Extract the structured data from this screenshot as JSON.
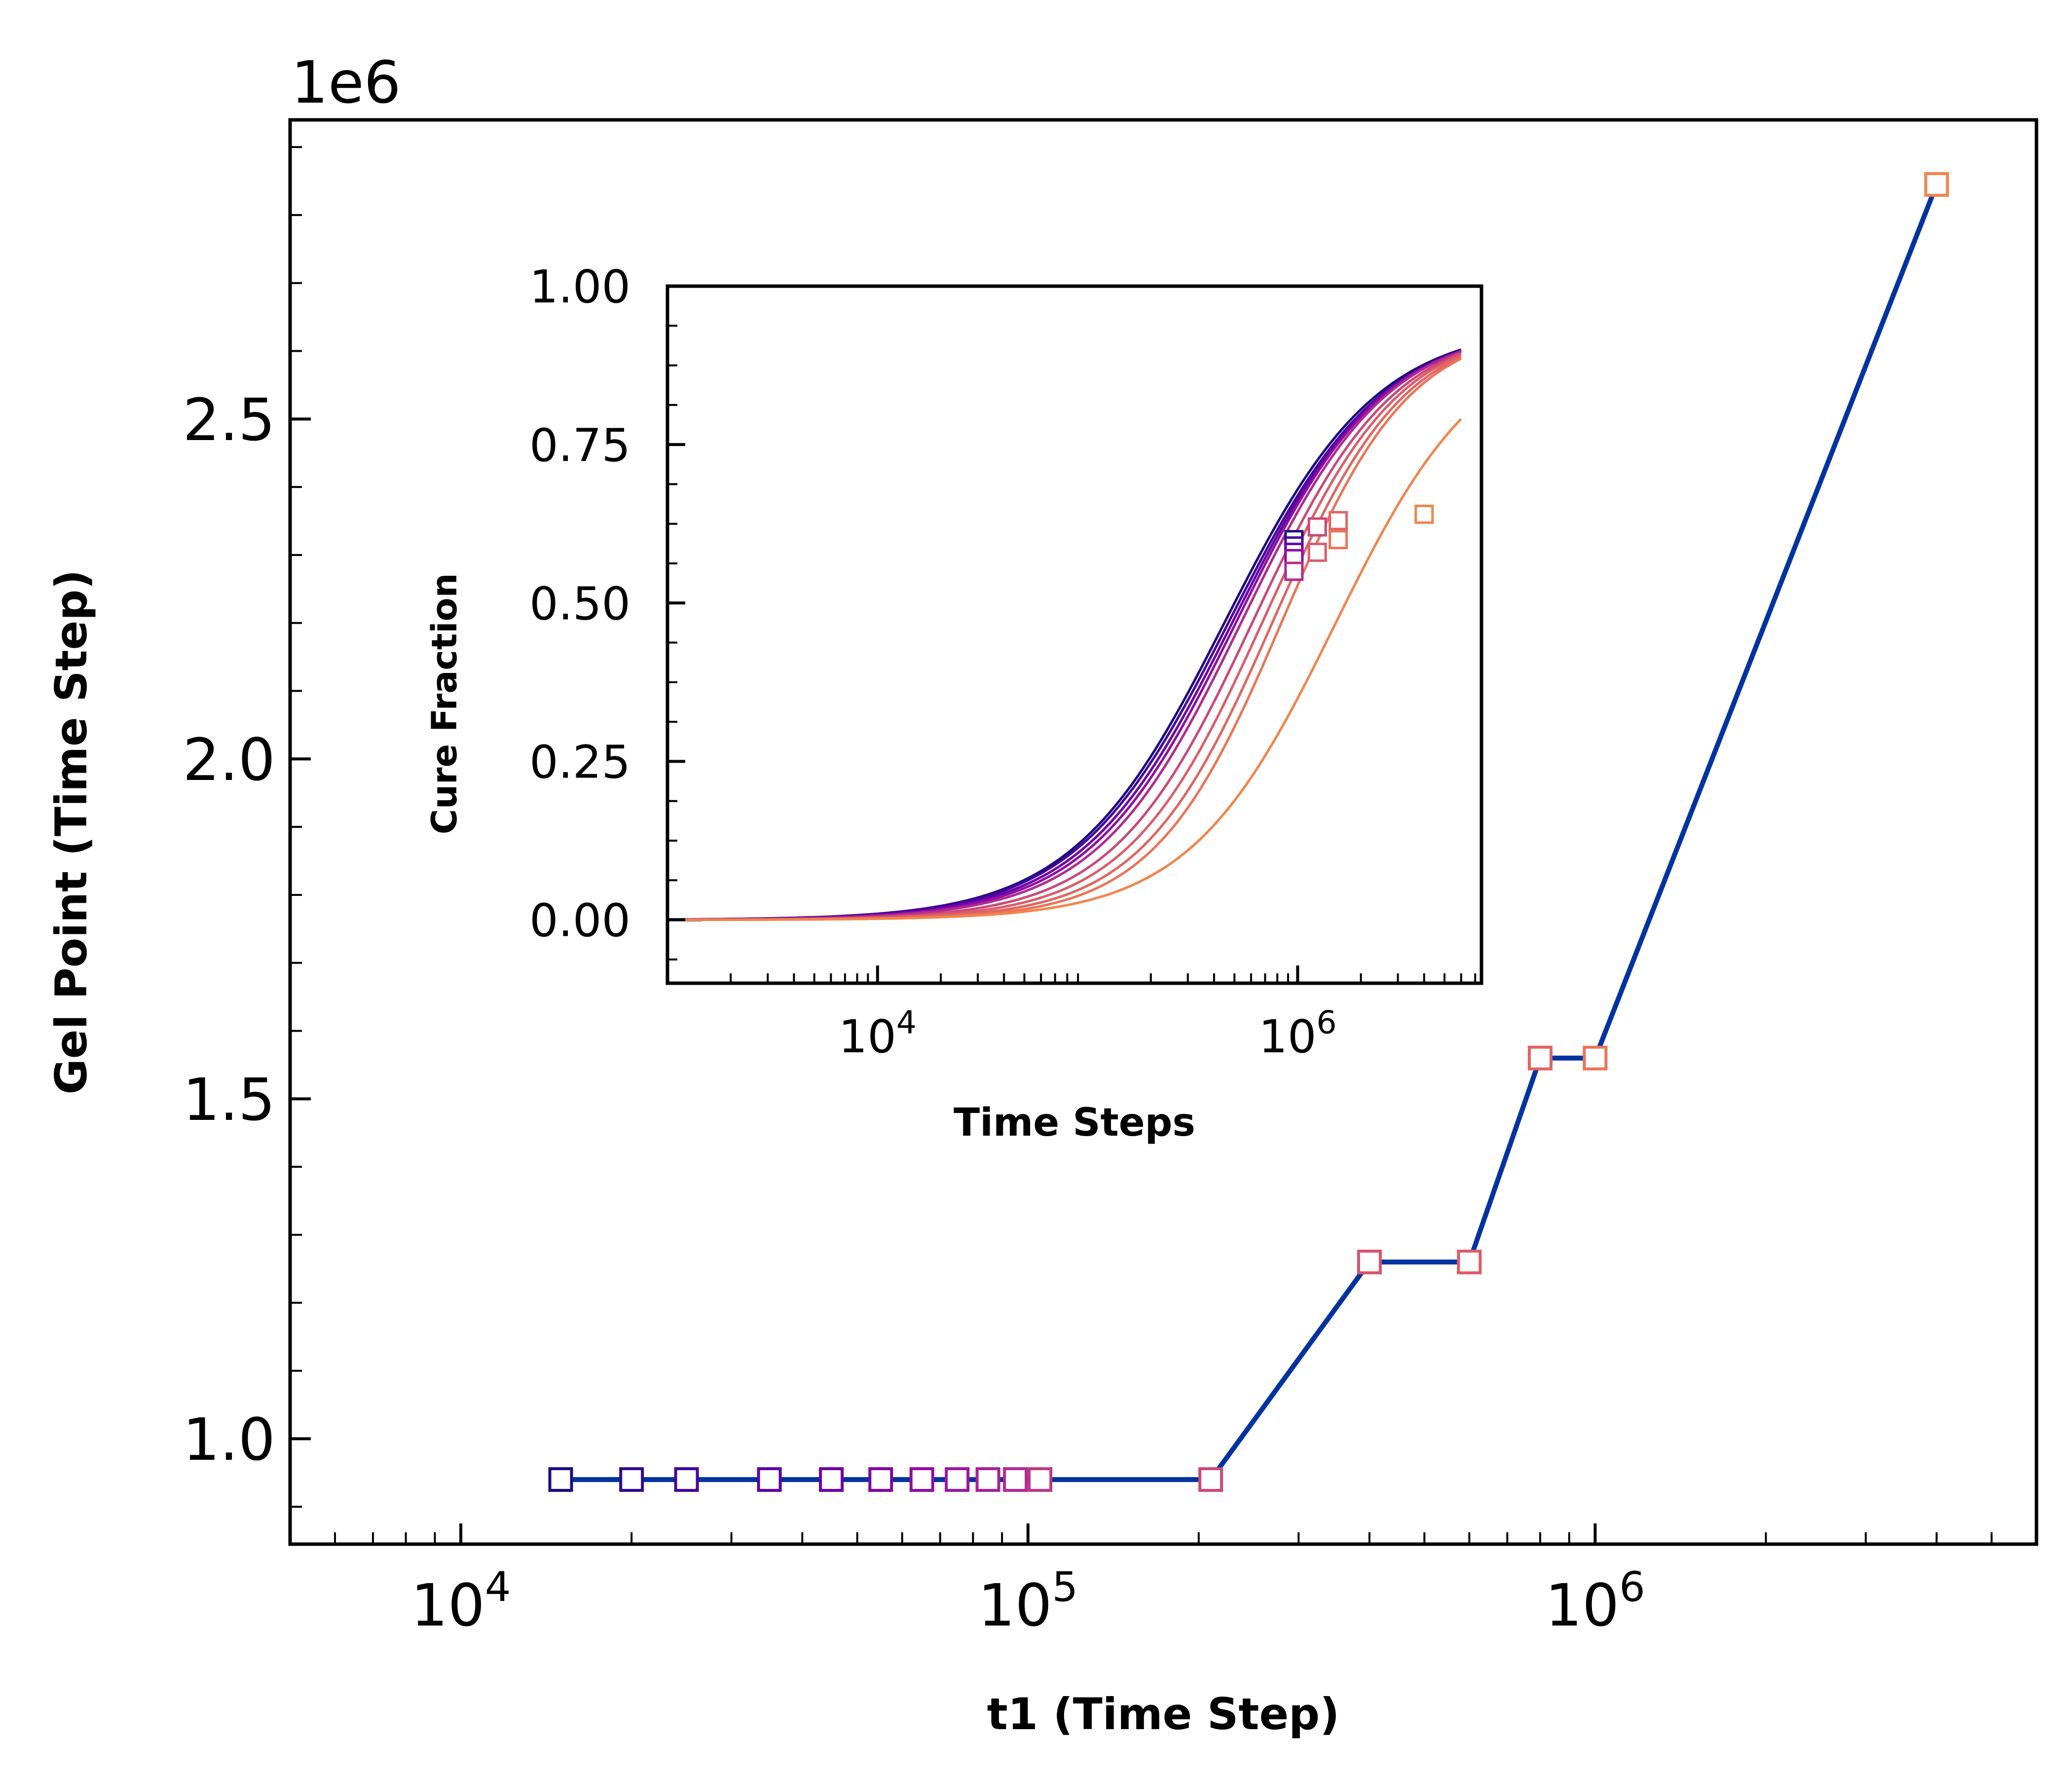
{
  "chart_data": [
    {
      "type": "line",
      "title": "",
      "xlabel": "t1 (Time Step)",
      "ylabel": "Gel Point (Time Step)",
      "y_multiplier_label": "1e6",
      "x_scale": "log",
      "xlim": [
        5000,
        6000000
      ],
      "ylim": [
        845000,
        2940000
      ],
      "x_ticks": [
        {
          "value": 10000,
          "base": "10",
          "exp": "4"
        },
        {
          "value": 100000,
          "base": "10",
          "exp": "5"
        },
        {
          "value": 1000000,
          "base": "10",
          "exp": "6"
        }
      ],
      "y_ticks": [
        {
          "value": 1000000,
          "label": "1.0"
        },
        {
          "value": 1500000,
          "label": "1.5"
        },
        {
          "value": 2000000,
          "label": "2.0"
        },
        {
          "value": 2500000,
          "label": "2.5"
        }
      ],
      "line_color": "#0033a0",
      "series": [
        {
          "points": [
            {
              "x": 15000,
              "y": 940000,
              "color": "#1a0c82"
            },
            {
              "x": 20000,
              "y": 940000,
              "color": "#2f0a8e"
            },
            {
              "x": 25000,
              "y": 940000,
              "color": "#43069a"
            },
            {
              "x": 35000,
              "y": 940000,
              "color": "#5c01a6"
            },
            {
              "x": 45000,
              "y": 940000,
              "color": "#6a00a8"
            },
            {
              "x": 55000,
              "y": 940000,
              "color": "#7e03a8"
            },
            {
              "x": 65000,
              "y": 940000,
              "color": "#8f0da4"
            },
            {
              "x": 75000,
              "y": 940000,
              "color": "#9c179e"
            },
            {
              "x": 85000,
              "y": 940000,
              "color": "#a72197"
            },
            {
              "x": 95000,
              "y": 940000,
              "color": "#b12a90"
            },
            {
              "x": 105000,
              "y": 940000,
              "color": "#bd3786"
            },
            {
              "x": 210000,
              "y": 940000,
              "color": "#cc4778"
            },
            {
              "x": 400000,
              "y": 1260000,
              "color": "#d5546e"
            },
            {
              "x": 600000,
              "y": 1260000,
              "color": "#db5c68"
            },
            {
              "x": 800000,
              "y": 1560000,
              "color": "#e16462"
            },
            {
              "x": 1000000,
              "y": 1560000,
              "color": "#ea7457"
            },
            {
              "x": 4000000,
              "y": 2845000,
              "color": "#f2844b"
            }
          ]
        }
      ]
    },
    {
      "type": "line",
      "title": "",
      "xlabel": "Time Steps",
      "ylabel": "Cure Fraction",
      "x_scale": "log",
      "xlim": [
        1000,
        7500000
      ],
      "ylim": [
        -0.1,
        1.0
      ],
      "x_ticks": [
        {
          "value": 10000,
          "base": "10",
          "exp": "4"
        },
        {
          "value": 1000000,
          "base": "10",
          "exp": "6"
        }
      ],
      "y_ticks": [
        {
          "value": 0.0,
          "label": "0.00"
        },
        {
          "value": 0.25,
          "label": "0.25"
        },
        {
          "value": 0.5,
          "label": "0.50"
        },
        {
          "value": 0.75,
          "label": "0.75"
        },
        {
          "value": 1.0,
          "label": "1.00"
        }
      ],
      "series": [
        {
          "color": "#1a0c82",
          "x50": 450000,
          "k": 1.2,
          "ymax": 0.94,
          "xend": 6000000,
          "gel": {
            "x": 960000,
            "y": 0.6
          }
        },
        {
          "color": "#43069a",
          "x50": 470000,
          "k": 1.2,
          "ymax": 0.94,
          "xend": 6000000,
          "gel": {
            "x": 960000,
            "y": 0.59
          }
        },
        {
          "color": "#6a00a8",
          "x50": 490000,
          "k": 1.22,
          "ymax": 0.94,
          "xend": 6000000,
          "gel": {
            "x": 960000,
            "y": 0.58
          }
        },
        {
          "color": "#8f0da4",
          "x50": 510000,
          "k": 1.24,
          "ymax": 0.94,
          "xend": 6000000,
          "gel": {
            "x": 960000,
            "y": 0.57
          }
        },
        {
          "color": "#b12a90",
          "x50": 540000,
          "k": 1.26,
          "ymax": 0.94,
          "xend": 6000000,
          "gel": {
            "x": 960000,
            "y": 0.55
          }
        },
        {
          "color": "#cc4778",
          "x50": 610000,
          "k": 1.3,
          "ymax": 0.94,
          "xend": 6000000,
          "gel": {
            "x": 1240000,
            "y": 0.62
          }
        },
        {
          "color": "#db5c68",
          "x50": 680000,
          "k": 1.34,
          "ymax": 0.94,
          "xend": 6000000,
          "gel": {
            "x": 1240000,
            "y": 0.58
          }
        },
        {
          "color": "#e16462",
          "x50": 760000,
          "k": 1.38,
          "ymax": 0.94,
          "xend": 6000000,
          "gel": {
            "x": 1560000,
            "y": 0.63
          }
        },
        {
          "color": "#ea7457",
          "x50": 840000,
          "k": 1.42,
          "ymax": 0.94,
          "xend": 6000000,
          "gel": {
            "x": 1560000,
            "y": 0.6
          }
        },
        {
          "color": "#f2844b",
          "x50": 1500000,
          "k": 1.25,
          "ymax": 0.93,
          "xend": 6000000,
          "gel": {
            "x": 4000000,
            "y": 0.64
          }
        }
      ]
    }
  ]
}
